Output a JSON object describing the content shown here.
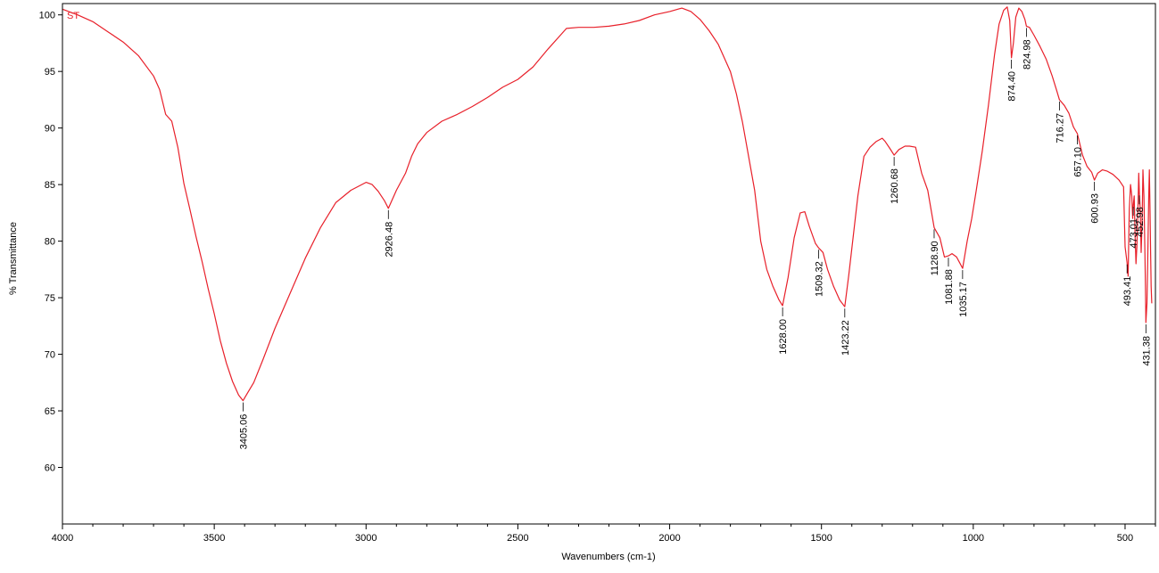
{
  "chart_data": {
    "type": "line",
    "title": "",
    "xlabel": "Wavenumbers (cm-1)",
    "ylabel": "% Transmittance",
    "xlim": [
      4000,
      400
    ],
    "ylim": [
      55,
      101
    ],
    "x_reversed": true,
    "xticks": [
      4000,
      3500,
      3000,
      2500,
      2000,
      1500,
      1000,
      500
    ],
    "yticks": [
      60,
      65,
      70,
      75,
      80,
      85,
      90,
      95,
      100
    ],
    "grid": false,
    "sample_label": "ST",
    "line_color": "#e8202a",
    "series": [
      {
        "name": "ST",
        "x": [
          4000,
          3950,
          3900,
          3850,
          3800,
          3750,
          3700,
          3680,
          3660,
          3640,
          3620,
          3600,
          3580,
          3560,
          3540,
          3520,
          3500,
          3480,
          3460,
          3440,
          3420,
          3405.06,
          3390,
          3370,
          3340,
          3300,
          3250,
          3200,
          3150,
          3100,
          3050,
          3000,
          2980,
          2960,
          2940,
          2926.48,
          2900,
          2870,
          2850,
          2830,
          2800,
          2750,
          2700,
          2650,
          2600,
          2550,
          2500,
          2450,
          2400,
          2360,
          2340,
          2300,
          2250,
          2200,
          2150,
          2100,
          2050,
          2000,
          1960,
          1930,
          1900,
          1870,
          1840,
          1800,
          1780,
          1760,
          1740,
          1720,
          1700,
          1680,
          1660,
          1640,
          1628.0,
          1610,
          1590,
          1570,
          1555,
          1540,
          1520,
          1509.32,
          1495,
          1480,
          1460,
          1440,
          1423.22,
          1410,
          1395,
          1380,
          1360,
          1340,
          1320,
          1300,
          1290,
          1275,
          1260.68,
          1245,
          1225,
          1210,
          1190,
          1170,
          1150,
          1128.9,
          1110,
          1095,
          1081.88,
          1070,
          1055,
          1045,
          1035.17,
          1020,
          1005,
          990,
          970,
          950,
          930,
          915,
          900,
          888,
          880,
          874.4,
          868,
          860,
          850,
          840,
          830,
          824.98,
          815,
          800,
          780,
          760,
          740,
          725,
          716.27,
          700,
          685,
          670,
          657.1,
          640,
          625,
          610,
          600.93,
          590,
          575,
          560,
          540,
          520,
          505,
          500,
          493.41,
          490,
          486,
          482,
          478,
          475,
          473.01,
          470,
          467,
          464,
          461,
          458,
          455,
          452.98,
          450,
          447,
          444,
          441,
          438,
          435,
          433,
          431.38,
          428,
          426,
          424,
          422,
          420,
          418,
          416,
          414,
          412
        ],
        "y": [
          100.5,
          100,
          99.4,
          98.5,
          97.6,
          96.4,
          94.6,
          93.4,
          91.2,
          90.6,
          88.3,
          85.1,
          82.8,
          80.4,
          78.2,
          75.8,
          73.6,
          71.2,
          69.2,
          67.6,
          66.4,
          65.9,
          66.6,
          67.5,
          69.5,
          72.3,
          75.4,
          78.5,
          81.2,
          83.4,
          84.5,
          85.2,
          85.0,
          84.4,
          83.6,
          82.9,
          84.5,
          86.0,
          87.5,
          88.6,
          89.6,
          90.6,
          91.2,
          91.9,
          92.7,
          93.6,
          94.3,
          95.4,
          97.0,
          98.2,
          98.8,
          98.9,
          98.9,
          99.0,
          99.2,
          99.5,
          100.0,
          100.3,
          100.6,
          100.3,
          99.6,
          98.6,
          97.4,
          95.0,
          93.0,
          90.5,
          87.5,
          84.5,
          80.0,
          77.5,
          76.0,
          74.8,
          74.3,
          76.8,
          80.3,
          82.5,
          82.6,
          81.3,
          79.8,
          79.4,
          79.0,
          77.5,
          76.0,
          74.8,
          74.2,
          77.0,
          80.5,
          84.0,
          87.5,
          88.3,
          88.8,
          89.1,
          88.8,
          88.2,
          87.6,
          88.1,
          88.4,
          88.4,
          88.3,
          86.0,
          84.5,
          81.2,
          80.3,
          78.6,
          78.7,
          78.9,
          78.6,
          78.1,
          77.6,
          80.0,
          82.0,
          84.5,
          88.0,
          92.0,
          96.5,
          99.2,
          100.4,
          100.7,
          99.5,
          96.2,
          97.5,
          99.8,
          100.6,
          100.3,
          99.6,
          99.0,
          98.9,
          98.2,
          97.2,
          96.1,
          94.6,
          93.3,
          92.5,
          92.0,
          91.3,
          90.1,
          89.5,
          87.6,
          86.6,
          86.1,
          85.4,
          86.0,
          86.3,
          86.2,
          85.9,
          85.4,
          84.8,
          79.5,
          78.1,
          76.9,
          82.8,
          85.0,
          84.0,
          82.0,
          83.2,
          84.0,
          80.5,
          78.0,
          79.5,
          82.5,
          86.0,
          84.2,
          82.7,
          79.0,
          81.5,
          86.3,
          84.0,
          79.5,
          76.0,
          72.8,
          74.5,
          77.5,
          80.5,
          84.0,
          86.3,
          83.0,
          79.0,
          76.0,
          74.5
        ]
      }
    ],
    "peak_labels": [
      {
        "x": 3405.06,
        "text": "3405.06"
      },
      {
        "x": 2926.48,
        "text": "2926.48"
      },
      {
        "x": 1628.0,
        "text": "1628.00"
      },
      {
        "x": 1509.32,
        "text": "1509.32"
      },
      {
        "x": 1423.22,
        "text": "1423.22"
      },
      {
        "x": 1260.68,
        "text": "1260.68"
      },
      {
        "x": 1128.9,
        "text": "1128.90"
      },
      {
        "x": 1081.88,
        "text": "1081.88"
      },
      {
        "x": 1035.17,
        "text": "1035.17"
      },
      {
        "x": 874.4,
        "text": "874.40"
      },
      {
        "x": 824.98,
        "text": "824.98"
      },
      {
        "x": 716.27,
        "text": "716.27"
      },
      {
        "x": 657.1,
        "text": "657.10"
      },
      {
        "x": 600.93,
        "text": "600.93"
      },
      {
        "x": 493.41,
        "text": "493.41"
      },
      {
        "x": 473.01,
        "text": "473.01"
      },
      {
        "x": 452.98,
        "text": "452.98"
      },
      {
        "x": 431.38,
        "text": "431.38"
      }
    ]
  }
}
